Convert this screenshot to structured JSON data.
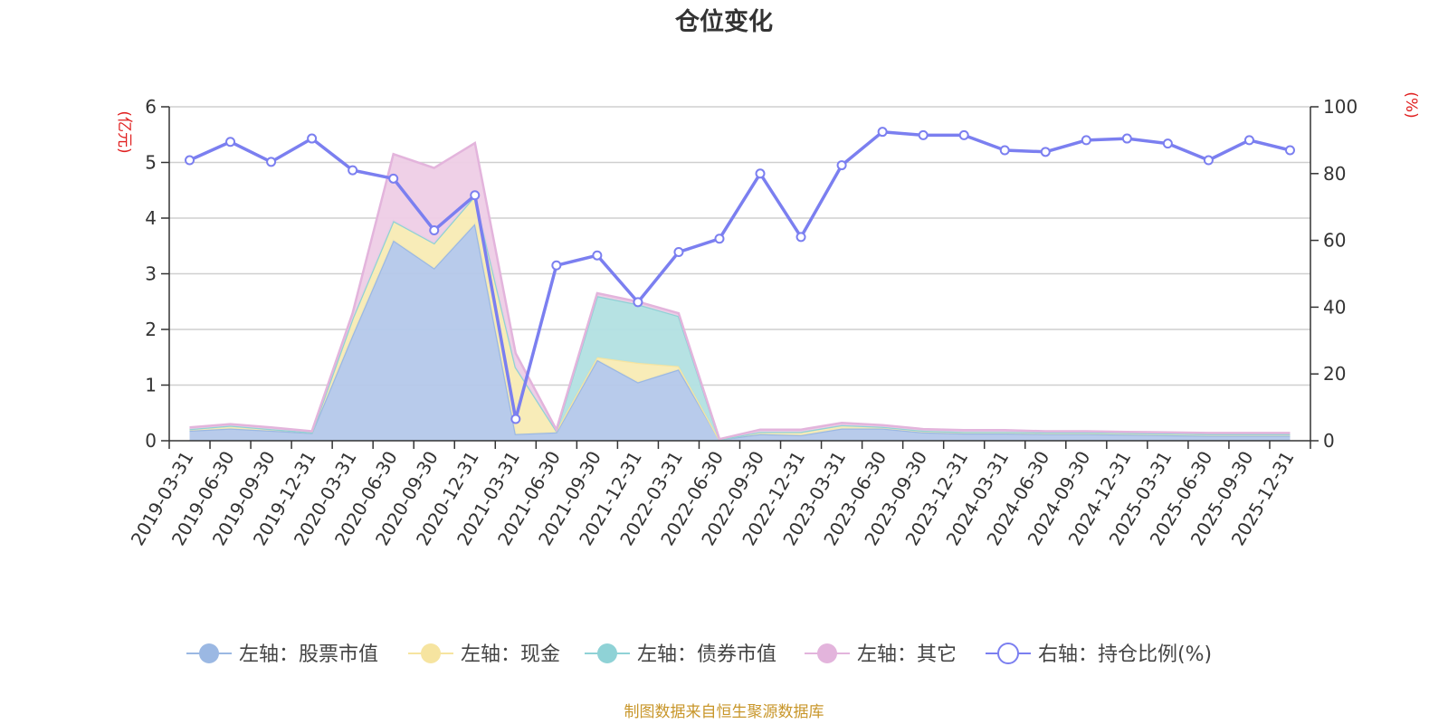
{
  "chart_data": {
    "type": "area",
    "title": "仓位变化",
    "left_unit": "(亿元)",
    "right_unit": "(%)",
    "source": "制图数据来自恒生聚源数据库",
    "y_left": {
      "min": 0,
      "max": 6,
      "ticks": [
        "0",
        "1",
        "2",
        "3",
        "4",
        "5",
        "6"
      ]
    },
    "y_right": {
      "min": 0,
      "max": 100,
      "ticks": [
        "0",
        "20",
        "40",
        "60",
        "80",
        "100"
      ]
    },
    "categories": [
      "2019-03-31",
      "2019-06-30",
      "2019-09-30",
      "2019-12-31",
      "2020-03-31",
      "2020-06-30",
      "2020-09-30",
      "2020-12-31",
      "2021-03-31",
      "2021-06-30",
      "2021-09-30",
      "2021-12-31",
      "2022-03-31",
      "2022-06-30",
      "2022-09-30",
      "2022-12-31",
      "2023-03-31",
      "2023-06-30",
      "2023-09-30",
      "2023-12-31",
      "2024-03-31",
      "2024-06-30",
      "2024-09-30",
      "2024-12-31",
      "2025-03-31",
      "2025-06-30",
      "2025-09-30",
      "2025-12-31"
    ],
    "series": [
      {
        "name": "左轴：股票市值",
        "axis": "left",
        "color": "#9bb8e3",
        "fill": "#b4c8ea",
        "values": [
          0.18,
          0.22,
          0.18,
          0.14,
          1.9,
          3.6,
          3.1,
          3.9,
          0.12,
          0.15,
          1.45,
          1.05,
          1.28,
          0.02,
          0.12,
          0.1,
          0.22,
          0.22,
          0.15,
          0.13,
          0.13,
          0.12,
          0.12,
          0.11,
          0.1,
          0.09,
          0.09,
          0.09
        ]
      },
      {
        "name": "左轴：现金",
        "axis": "left",
        "color": "#f6e4a0",
        "fill": "#f8ebb4",
        "values": [
          0.03,
          0.05,
          0.03,
          0.01,
          0.3,
          0.35,
          0.45,
          0.5,
          1.2,
          0.03,
          0.05,
          0.35,
          0.06,
          0.0,
          0.04,
          0.06,
          0.06,
          0.03,
          0.03,
          0.03,
          0.03,
          0.03,
          0.03,
          0.03,
          0.03,
          0.03,
          0.03,
          0.03
        ]
      },
      {
        "name": "左轴：债券市值",
        "axis": "left",
        "color": "#8fd2d6",
        "fill": "#b2e0e2",
        "values": [
          0,
          0,
          0,
          0,
          0,
          0,
          0,
          0,
          0,
          0,
          1.1,
          1.05,
          0.9,
          0,
          0,
          0,
          0,
          0,
          0,
          0,
          0,
          0,
          0,
          0,
          0,
          0,
          0,
          0
        ]
      },
      {
        "name": "左轴：其它",
        "axis": "left",
        "color": "#e3b4dc",
        "fill": "#eecde6",
        "values": [
          0.03,
          0.03,
          0.03,
          0.02,
          0.1,
          1.2,
          1.35,
          0.95,
          0.25,
          0.02,
          0.05,
          0.05,
          0.05,
          0.01,
          0.04,
          0.04,
          0.04,
          0.03,
          0.03,
          0.03,
          0.03,
          0.02,
          0.02,
          0.02,
          0.02,
          0.02,
          0.02,
          0.02
        ]
      },
      {
        "name": "右轴：持仓比例(%)",
        "axis": "right",
        "color": "#7b7ff0",
        "values": [
          84,
          89.5,
          83.5,
          90.5,
          81,
          78.5,
          63,
          73.5,
          6.5,
          52.5,
          55.5,
          41.5,
          56.5,
          60.5,
          80,
          61,
          82.5,
          92.5,
          91.5,
          91.5,
          87,
          86.5,
          90,
          90.5,
          89,
          84,
          90,
          87
        ]
      }
    ],
    "legend": [
      {
        "label": "左轴：股票市值",
        "icon": "filled-circle",
        "color": "#9bb8e3"
      },
      {
        "label": "左轴：现金",
        "icon": "filled-circle",
        "color": "#f6e4a0"
      },
      {
        "label": "左轴：债券市值",
        "icon": "filled-circle",
        "color": "#8fd2d6"
      },
      {
        "label": "左轴：其它",
        "icon": "filled-circle",
        "color": "#e3b4dc"
      },
      {
        "label": "右轴：持仓比例(%)",
        "icon": "hollow-circle",
        "color": "#7b7ff0"
      }
    ],
    "grid": true,
    "legend_position": "bottom"
  }
}
